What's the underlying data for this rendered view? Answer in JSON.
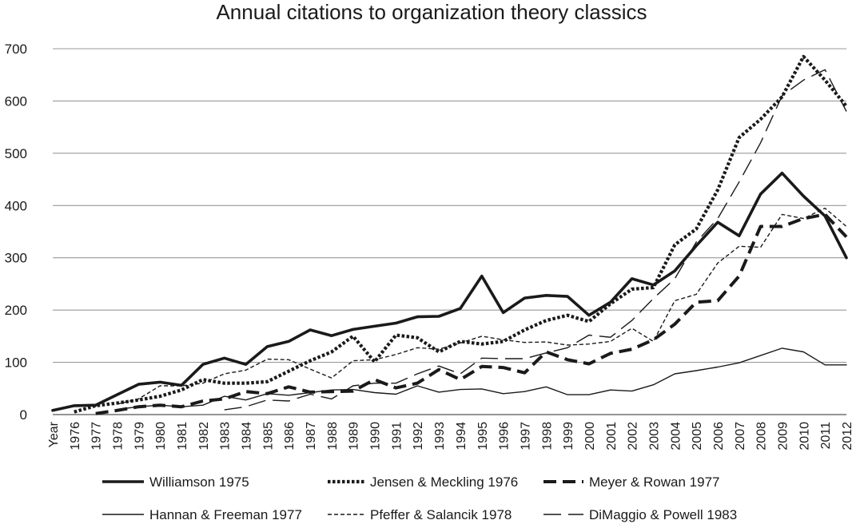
{
  "chart_data": {
    "type": "line",
    "title": "Annual citations to organization theory classics",
    "xlabel": "",
    "ylabel": "",
    "categories": [
      "Year",
      "1976",
      "1977",
      "1978",
      "1979",
      "1980",
      "1981",
      "1982",
      "1983",
      "1984",
      "1985",
      "1986",
      "1987",
      "1988",
      "1989",
      "1990",
      "1991",
      "1992",
      "1993",
      "1994",
      "1995",
      "1996",
      "1997",
      "1998",
      "1999",
      "2000",
      "2001",
      "2002",
      "2003",
      "2004",
      "2005",
      "2006",
      "2007",
      "2008",
      "2009",
      "2010",
      "2011",
      "2012"
    ],
    "ylim": [
      0,
      700
    ],
    "yticks": [
      0,
      100,
      200,
      300,
      400,
      500,
      600,
      700
    ],
    "grid": "horizontal",
    "legend_position": "bottom",
    "series": [
      {
        "name": "Williamson 1975",
        "color": "#1a1a1a",
        "style": "solid-bold",
        "values": [
          8,
          17,
          18,
          38,
          58,
          62,
          56,
          96,
          108,
          96,
          130,
          140,
          162,
          151,
          163,
          169,
          175,
          187,
          188,
          203,
          265,
          195,
          223,
          228,
          226,
          190,
          215,
          260,
          248,
          275,
          323,
          368,
          342,
          422,
          462,
          418,
          380,
          300
        ]
      },
      {
        "name": "Jensen & Meckling 1976",
        "color": "#1a1a1a",
        "style": "dotted-bold",
        "values": [
          null,
          5,
          17,
          22,
          28,
          35,
          47,
          67,
          60,
          60,
          63,
          83,
          103,
          120,
          150,
          101,
          152,
          147,
          120,
          140,
          135,
          140,
          162,
          180,
          190,
          178,
          212,
          240,
          243,
          325,
          355,
          430,
          530,
          565,
          608,
          685,
          640,
          590
        ]
      },
      {
        "name": "Meyer & Rowan 1977",
        "color": "#1a1a1a",
        "style": "dashed-bold",
        "values": [
          null,
          null,
          2,
          8,
          15,
          18,
          15,
          26,
          30,
          44,
          40,
          53,
          43,
          44,
          45,
          67,
          51,
          60,
          86,
          67,
          92,
          90,
          80,
          120,
          105,
          97,
          117,
          125,
          143,
          173,
          215,
          218,
          265,
          360,
          360,
          375,
          383,
          340
        ]
      },
      {
        "name": "Hannan & Freeman 1977",
        "color": "#1a1a1a",
        "style": "solid-thin",
        "values": [
          null,
          null,
          null,
          10,
          15,
          18,
          15,
          18,
          35,
          28,
          40,
          37,
          42,
          47,
          48,
          42,
          39,
          55,
          43,
          48,
          49,
          40,
          44,
          53,
          38,
          38,
          47,
          45,
          57,
          78,
          84,
          91,
          99,
          113,
          127,
          120,
          95,
          95
        ]
      },
      {
        "name": "Pfeffer & Salancik 1978",
        "color": "#1a1a1a",
        "style": "dashed-thin",
        "values": [
          null,
          null,
          null,
          20,
          30,
          55,
          55,
          60,
          78,
          85,
          106,
          105,
          87,
          70,
          103,
          105,
          115,
          128,
          125,
          137,
          150,
          143,
          138,
          139,
          133,
          135,
          140,
          165,
          140,
          218,
          230,
          290,
          322,
          320,
          383,
          375,
          395,
          360
        ]
      },
      {
        "name": "DiMaggio & Powell 1983",
        "color": "#1a1a1a",
        "style": "longdash-thin",
        "values": [
          null,
          null,
          null,
          null,
          null,
          null,
          null,
          null,
          9,
          15,
          28,
          26,
          39,
          30,
          55,
          60,
          60,
          78,
          93,
          78,
          108,
          107,
          107,
          118,
          128,
          152,
          148,
          180,
          222,
          260,
          330,
          375,
          445,
          520,
          610,
          640,
          660,
          580
        ]
      }
    ]
  }
}
